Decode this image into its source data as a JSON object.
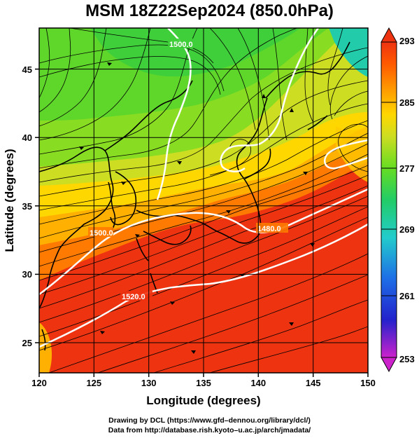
{
  "title": "MSM 18Z22Sep2024 (850.0hPa)",
  "axes": {
    "xlabel": "Longitude (degrees)",
    "ylabel": "Latitude  (degrees)",
    "x_ticks": [
      "120",
      "125",
      "130",
      "135",
      "140",
      "145",
      "150"
    ],
    "y_ticks": [
      "25",
      "30",
      "35",
      "40",
      "45"
    ],
    "xlim": [
      120,
      150
    ],
    "ylim": [
      22.4,
      47.6
    ]
  },
  "colorbar": {
    "labels": [
      "293",
      "285",
      "277",
      "269",
      "261",
      "253"
    ],
    "range": [
      253,
      293
    ],
    "colors": [
      "#cc22cc",
      "#2222cc",
      "#1e6ee6",
      "#22cccc",
      "#22cc66",
      "#66dd22",
      "#ccdd22",
      "#ffd700",
      "#ff9a00",
      "#ff5a00",
      "#ee3311"
    ]
  },
  "contour_labels": [
    "1520.0",
    "1500.0",
    "1480.0",
    "1500.0",
    "1520.0",
    "1520.0",
    "1480.0"
  ],
  "credits": {
    "line1": "Drawing by DCL (https://www.gfd–dennou.org/library/dcl/)",
    "line2": "Data from http://database.rish.kyoto–u.ac.jp/arch/jmadata/"
  }
}
